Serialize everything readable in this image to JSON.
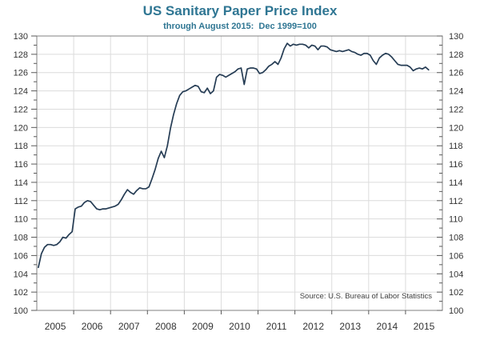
{
  "header": {
    "title": "US Sanitary Paper Price Index",
    "subtitle": "through August 2015:  Dec 1999=100"
  },
  "source_label": "Source: U.S. Bureau of Labor Statistics",
  "colors": {
    "title": "#2f7693",
    "line": "#253c54",
    "grid": "#dcdcdc",
    "frame": "#808080",
    "tick": "#595959",
    "label": "#333333",
    "source": "#3f3f3f",
    "background": "#ffffff"
  },
  "chart_data": {
    "type": "line",
    "title": "US Sanitary Paper Price Index",
    "subtitle": "through August 2015: Dec 1999=100",
    "source": "Source: U.S. Bureau of Labor Statistics",
    "grid": true,
    "legend": "none",
    "ylim": [
      100,
      130
    ],
    "y_major_step": 2,
    "y_minor_step": 1,
    "y_tick_labels": [
      "100",
      "102",
      "104",
      "106",
      "108",
      "110",
      "112",
      "114",
      "116",
      "118",
      "120",
      "122",
      "124",
      "126",
      "128",
      "130"
    ],
    "y_labels_both_sides": true,
    "x_axis_range": [
      2005.0,
      2016.0
    ],
    "x_tick_labels": [
      "2005",
      "2006",
      "2007",
      "2008",
      "2009",
      "2010",
      "2011",
      "2012",
      "2013",
      "2014",
      "2015"
    ],
    "frequency": "monthly",
    "start_month": "2005-01",
    "end_month": "2015-08",
    "series": [
      {
        "name": "US Sanitary Paper Price Index (Dec 1999=100)",
        "monthly_values": [
          104.7,
          106.2,
          106.9,
          107.2,
          107.2,
          107.1,
          107.2,
          107.5,
          108.0,
          107.9,
          108.3,
          108.6,
          111.1,
          111.3,
          111.4,
          111.8,
          112.0,
          111.9,
          111.5,
          111.1,
          111.0,
          111.1,
          111.1,
          111.2,
          111.3,
          111.4,
          111.6,
          112.1,
          112.7,
          113.2,
          112.9,
          112.7,
          113.1,
          113.4,
          113.3,
          113.3,
          113.5,
          114.4,
          115.4,
          116.6,
          117.4,
          116.7,
          118.0,
          119.9,
          121.4,
          122.6,
          123.5,
          123.9,
          124.0,
          124.2,
          124.4,
          124.6,
          124.5,
          123.9,
          123.8,
          124.3,
          123.7,
          124.0,
          125.5,
          125.8,
          125.7,
          125.5,
          125.7,
          125.9,
          126.1,
          126.4,
          126.5,
          124.7,
          126.4,
          126.5,
          126.5,
          126.4,
          125.9,
          126.0,
          126.3,
          126.7,
          126.9,
          127.2,
          126.9,
          127.6,
          128.6,
          129.2,
          128.9,
          129.1,
          129.0,
          129.1,
          129.1,
          129.0,
          128.7,
          129.0,
          128.9,
          128.5,
          128.9,
          128.9,
          128.8,
          128.5,
          128.4,
          128.3,
          128.4,
          128.3,
          128.4,
          128.5,
          128.3,
          128.2,
          128.0,
          127.9,
          128.1,
          128.1,
          127.9,
          127.3,
          126.9,
          127.6,
          127.9,
          128.1,
          128.0,
          127.7,
          127.3,
          126.9,
          126.8,
          126.8,
          126.8,
          126.6,
          126.2,
          126.4,
          126.5,
          126.4,
          126.6,
          126.3
        ]
      }
    ]
  }
}
